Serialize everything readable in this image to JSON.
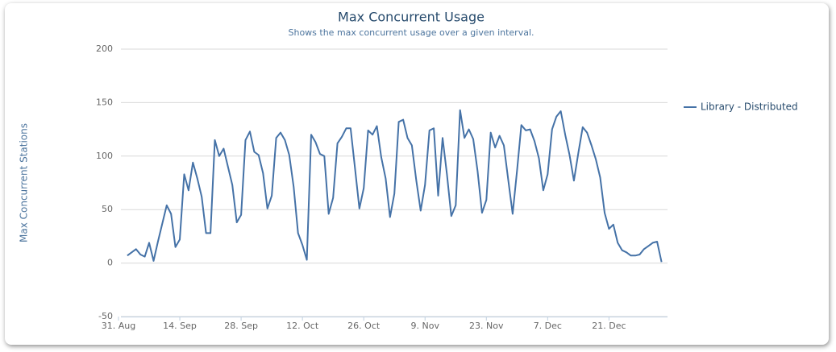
{
  "chart_data": {
    "type": "line",
    "title": "Max Concurrent Usage",
    "subtitle": "Shows the max concurrent usage over a given interval.",
    "y_label": "Max Concurrent Stations",
    "x": [
      2,
      4,
      5,
      6,
      7,
      8,
      9,
      11,
      12,
      13,
      14,
      15,
      16,
      17,
      18,
      19,
      20,
      21,
      22,
      23,
      24,
      25,
      26,
      27,
      28,
      29,
      30,
      31,
      32,
      33,
      34,
      35,
      36,
      37,
      38,
      39,
      40,
      41,
      42,
      43,
      44,
      45,
      46,
      47,
      48,
      49,
      50,
      51,
      52,
      53,
      54,
      55,
      56,
      57,
      58,
      59,
      60,
      61,
      62,
      63,
      64,
      65,
      66,
      67,
      68,
      69,
      70,
      71,
      72,
      73,
      74,
      75,
      76,
      77,
      78,
      79,
      80,
      81,
      82,
      83,
      84,
      85,
      86,
      87,
      88,
      89,
      90,
      91,
      92,
      93,
      94,
      95,
      96,
      97,
      98,
      99,
      100,
      101,
      102,
      103,
      104,
      105,
      106,
      107,
      108,
      109,
      110,
      111,
      112,
      113,
      114,
      115,
      116,
      117,
      118,
      119,
      120,
      121,
      122,
      123,
      124
    ],
    "series": [
      {
        "name": "Library - Distributed",
        "color": "#4572a7",
        "values": [
          7,
          13,
          8,
          6,
          19,
          2,
          20,
          54,
          46,
          15,
          22,
          83,
          68,
          94,
          79,
          62,
          28,
          28,
          115,
          100,
          107,
          90,
          73,
          38,
          45,
          115,
          123,
          104,
          101,
          84,
          51,
          63,
          117,
          122,
          115,
          101,
          71,
          28,
          17,
          3,
          120,
          113,
          102,
          100,
          46,
          61,
          112,
          118,
          126,
          126,
          89,
          51,
          70,
          124,
          120,
          128,
          99,
          79,
          43,
          65,
          132,
          134,
          117,
          110,
          77,
          49,
          73,
          124,
          126,
          63,
          117,
          83,
          44,
          54,
          143,
          117,
          125,
          116,
          86,
          47,
          59,
          122,
          108,
          119,
          110,
          78,
          46,
          86,
          129,
          124,
          125,
          114,
          98,
          68,
          83,
          125,
          137,
          142,
          120,
          101,
          77,
          103,
          127,
          122,
          110,
          97,
          80,
          47,
          32,
          36,
          19,
          12,
          10,
          7,
          7,
          8,
          13,
          16,
          19,
          20,
          1
        ]
      }
    ],
    "xlim": [
      0,
      125
    ],
    "xticks": [
      {
        "value": 0,
        "label": "31. Aug"
      },
      {
        "value": 14,
        "label": "14. Sep"
      },
      {
        "value": 28,
        "label": "28. Sep"
      },
      {
        "value": 42,
        "label": "12. Oct"
      },
      {
        "value": 56,
        "label": "26. Oct"
      },
      {
        "value": 70,
        "label": "9. Nov"
      },
      {
        "value": 84,
        "label": "23. Nov"
      },
      {
        "value": 98,
        "label": "7. Dec"
      },
      {
        "value": 112,
        "label": "21. Dec"
      }
    ],
    "ylim": [
      -50,
      200
    ],
    "yticks": [
      -50,
      0,
      50,
      100,
      150,
      200
    ],
    "grid": true,
    "legend": "right"
  }
}
